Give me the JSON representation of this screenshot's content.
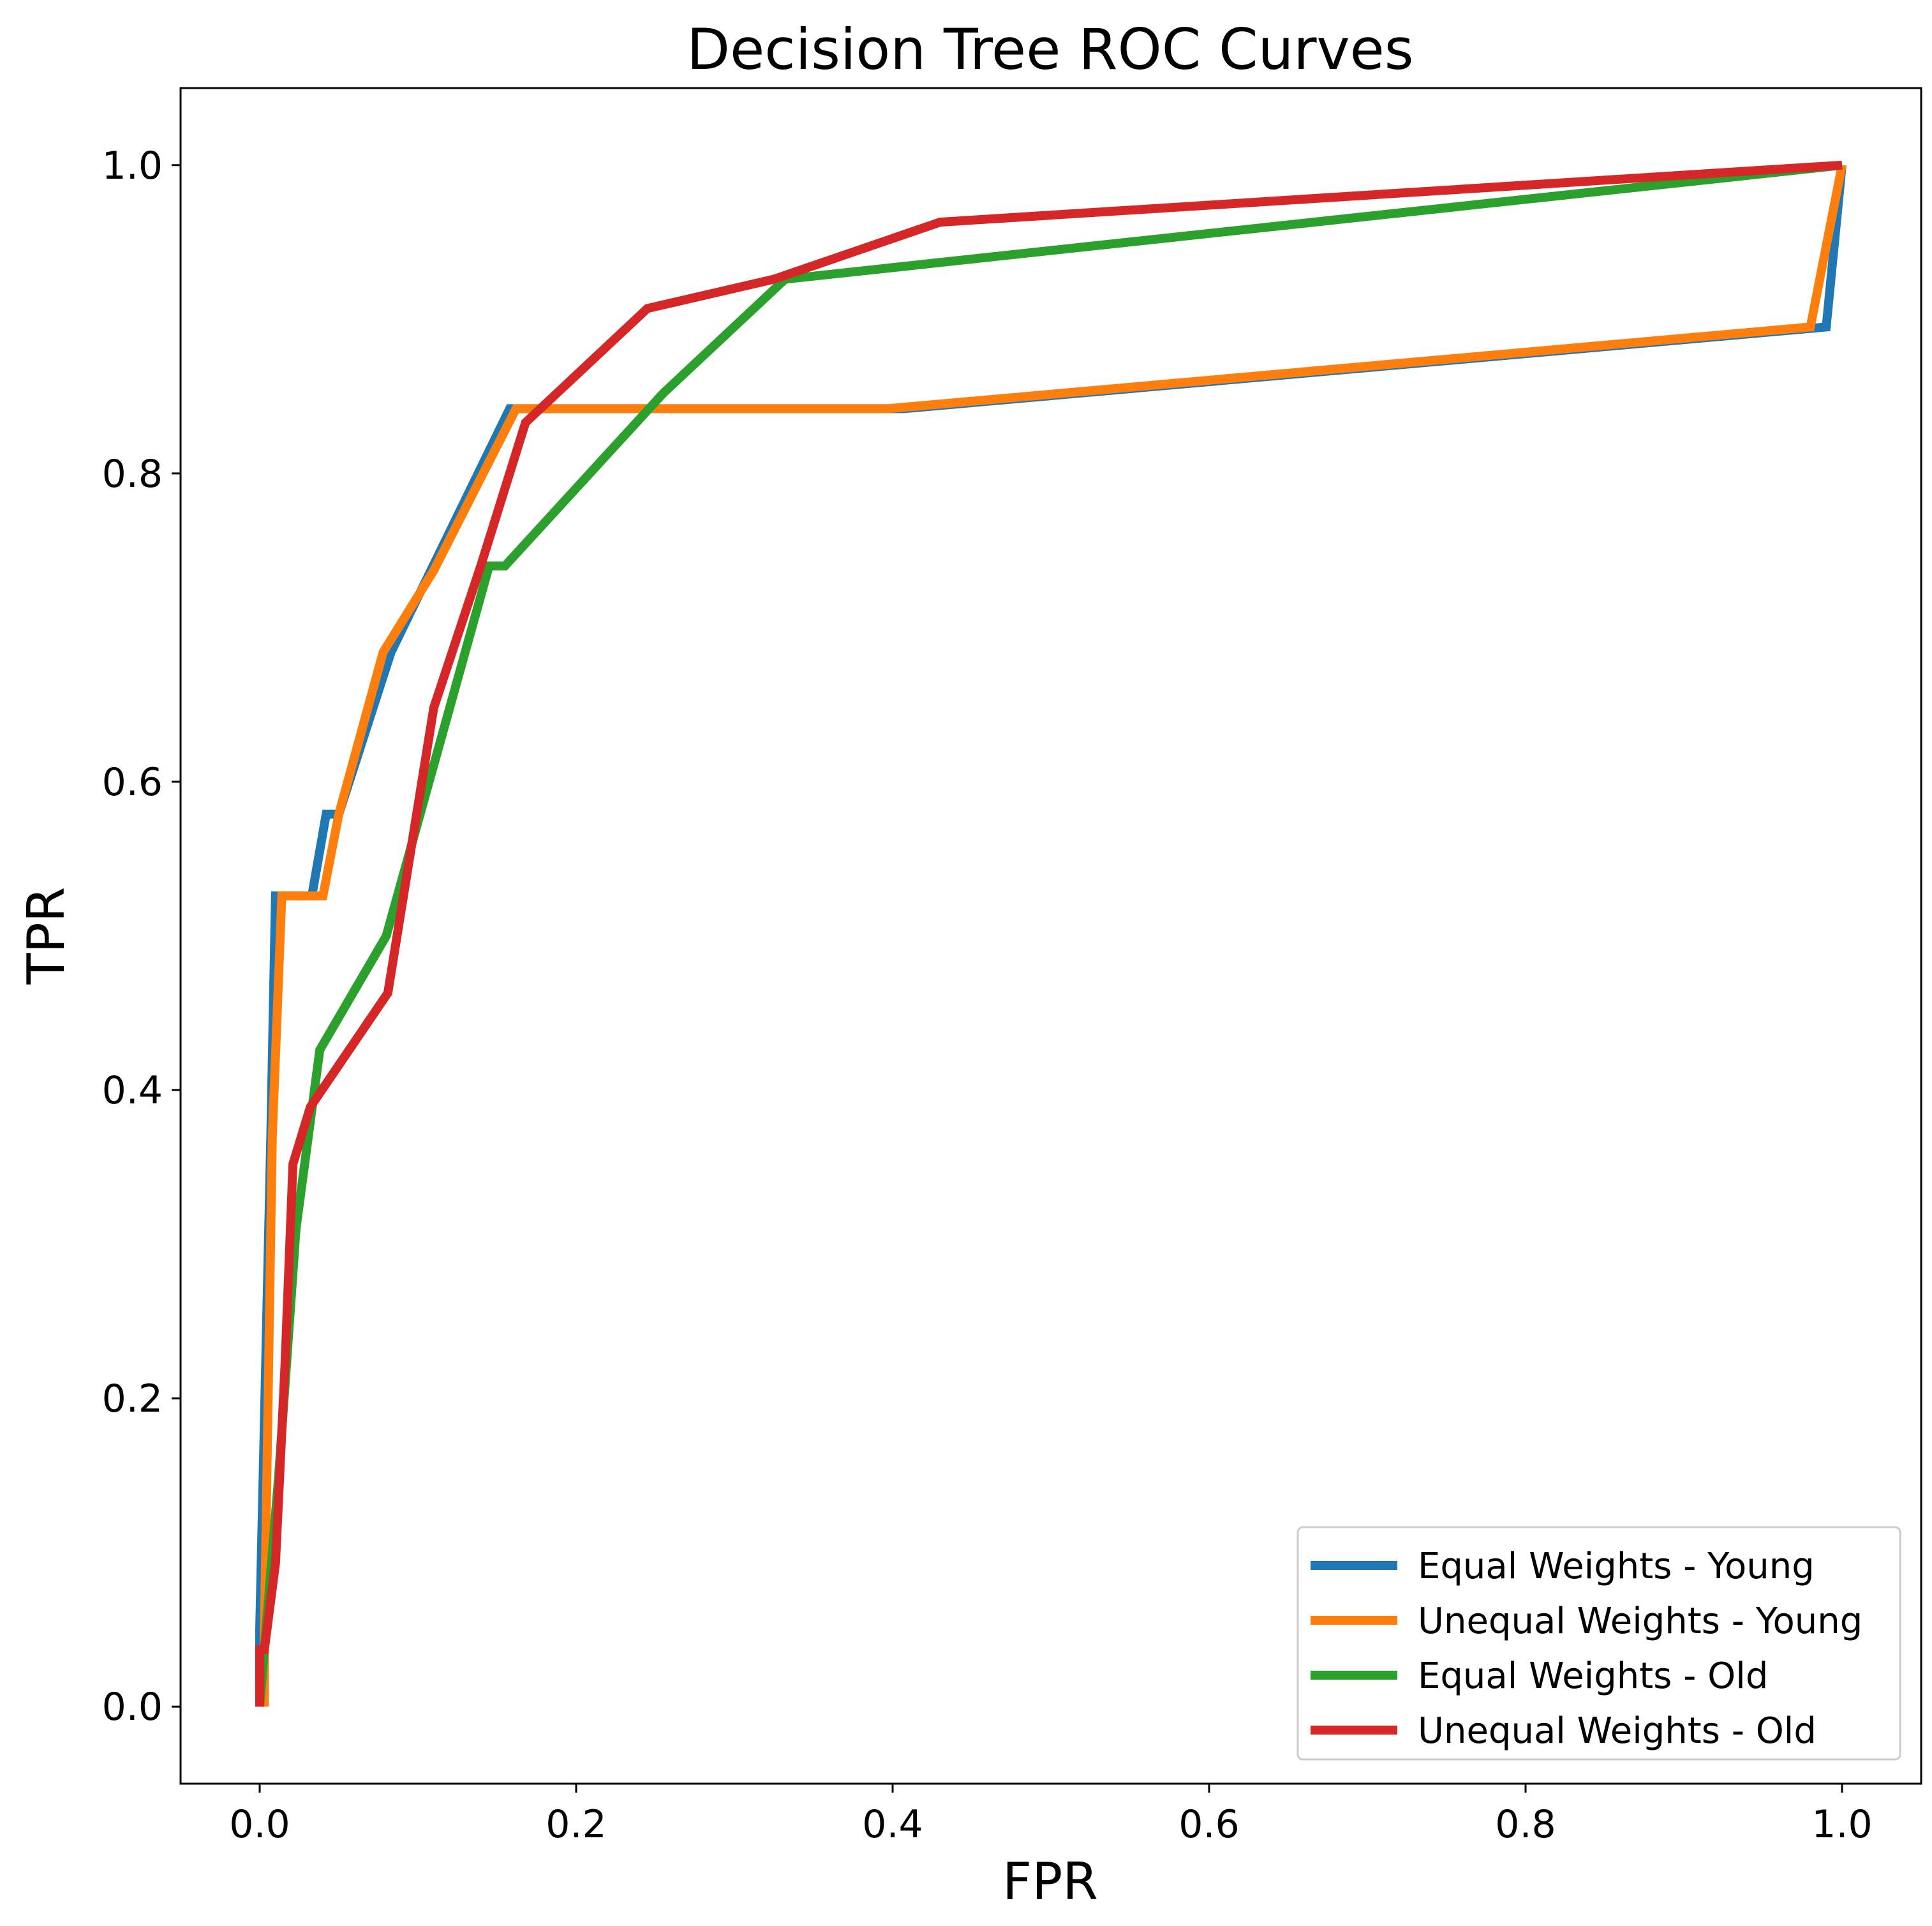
{
  "chart_data": {
    "type": "line",
    "title": "Decision Tree ROC Curves",
    "xlabel": "FPR",
    "ylabel": "TPR",
    "xlim": [
      -0.05,
      1.05
    ],
    "ylim": [
      -0.05,
      1.05
    ],
    "xticks": [
      0.0,
      0.2,
      0.4,
      0.6,
      0.8,
      1.0
    ],
    "yticks": [
      0.0,
      0.2,
      0.4,
      0.6,
      0.8,
      1.0
    ],
    "xtick_labels": [
      "0.0",
      "0.2",
      "0.4",
      "0.6",
      "0.8",
      "1.0"
    ],
    "ytick_labels": [
      "0.0",
      "0.2",
      "0.4",
      "0.6",
      "0.8",
      "1.0"
    ],
    "grid": false,
    "legend_position": "lower-right",
    "series": [
      {
        "name": "Equal Weights - Young",
        "color": "#1f77b4",
        "x": [
          0.0,
          0.0,
          0.007,
          0.01,
          0.033,
          0.042,
          0.05,
          0.083,
          0.158,
          0.407,
          0.99,
          1.0
        ],
        "y": [
          0.0,
          0.05,
          0.37,
          0.526,
          0.526,
          0.579,
          0.579,
          0.684,
          0.842,
          0.842,
          0.895,
          1.0
        ]
      },
      {
        "name": "Unequal Weights - Young",
        "color": "#ff7f0e",
        "x": [
          0.003,
          0.003,
          0.008,
          0.014,
          0.04,
          0.05,
          0.078,
          0.11,
          0.162,
          0.397,
          0.98,
          1.0
        ],
        "y": [
          0.0,
          0.05,
          0.37,
          0.526,
          0.526,
          0.579,
          0.684,
          0.737,
          0.842,
          0.842,
          0.895,
          1.0
        ]
      },
      {
        "name": "Equal Weights - Old",
        "color": "#2ca02c",
        "x": [
          0.0,
          0.004,
          0.012,
          0.023,
          0.038,
          0.08,
          0.145,
          0.155,
          0.255,
          0.332,
          1.0
        ],
        "y": [
          0.0,
          0.05,
          0.15,
          0.31,
          0.426,
          0.5,
          0.74,
          0.74,
          0.852,
          0.926,
          1.0
        ]
      },
      {
        "name": "Unequal Weights - Old",
        "color": "#d62728",
        "x": [
          0.0,
          0.0,
          0.003,
          0.01,
          0.016,
          0.021,
          0.032,
          0.081,
          0.11,
          0.14,
          0.168,
          0.245,
          0.325,
          0.43,
          1.0
        ],
        "y": [
          0.0,
          0.037,
          0.037,
          0.093,
          0.222,
          0.352,
          0.389,
          0.463,
          0.648,
          0.741,
          0.833,
          0.907,
          0.926,
          0.963,
          1.0
        ]
      }
    ]
  }
}
